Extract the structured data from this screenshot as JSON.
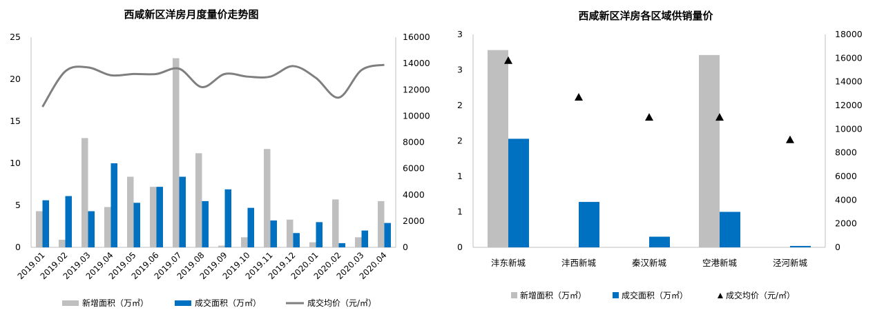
{
  "colors": {
    "new_area": "#bfbfbf",
    "deal_area": "#0070c0",
    "price": "#7f7f7f",
    "axis": "#bfbfbf",
    "marker": "#000000"
  },
  "chart_data": [
    {
      "type": "bar+line",
      "title": "西咸新区洋房月度量价走势图",
      "categories": [
        "2019.01",
        "2019.02",
        "2019.03",
        "2019.04",
        "2019.05",
        "2019.06",
        "2019.07",
        "2019.08",
        "2019.09",
        "2019.10",
        "2019.11",
        "2019.12",
        "2020.01",
        "2020.02",
        "2020.03",
        "2020.04"
      ],
      "series": [
        {
          "name": "新增面积（万㎡）",
          "type": "bar",
          "axis": "left",
          "values": [
            4.3,
            0.9,
            13.0,
            4.8,
            8.4,
            7.2,
            22.5,
            11.2,
            0.2,
            1.2,
            11.7,
            3.3,
            0.6,
            5.7,
            1.2,
            5.5
          ]
        },
        {
          "name": "成交面积（万㎡）",
          "type": "bar",
          "axis": "left",
          "values": [
            5.6,
            6.1,
            4.3,
            10.0,
            5.3,
            7.2,
            8.4,
            5.5,
            6.9,
            4.7,
            3.2,
            1.7,
            3.0,
            0.5,
            2.0,
            2.9
          ]
        },
        {
          "name": "成交均价（元/㎡）",
          "type": "line",
          "axis": "right",
          "values": [
            10700,
            13400,
            13700,
            13100,
            13200,
            13200,
            13600,
            12200,
            13200,
            13000,
            13000,
            13800,
            12900,
            11400,
            13500,
            13900
          ]
        }
      ],
      "ylim_left": [
        0,
        25
      ],
      "yticks_left": [
        "0",
        "5",
        "10",
        "15",
        "20",
        "25"
      ],
      "ylim_right": [
        0,
        16000
      ],
      "yticks_right": [
        "0",
        "2000",
        "4000",
        "6000",
        "8000",
        "10000",
        "12000",
        "14000",
        "16000"
      ],
      "legend": "bottom"
    },
    {
      "type": "bar+scatter",
      "title": "西咸新区洋房各区域供销量价",
      "categories": [
        "沣东新城",
        "沣西新城",
        "秦汉新城",
        "空港新城",
        "泾河新城"
      ],
      "series": [
        {
          "name": "新增面积（万㎡）",
          "type": "bar",
          "axis": "left",
          "values": [
            2.78,
            0,
            0,
            2.71,
            0
          ]
        },
        {
          "name": "成交面积（万㎡）",
          "type": "bar",
          "axis": "left",
          "values": [
            1.53,
            0.64,
            0.15,
            0.5,
            0.02
          ]
        },
        {
          "name": "成交均价（元/㎡）",
          "type": "scatter",
          "marker": "triangle",
          "axis": "right",
          "values": [
            15800,
            12700,
            11000,
            11000,
            9100
          ]
        }
      ],
      "ylim_left": [
        0,
        3
      ],
      "yticks_left": [
        "0",
        "1",
        "1",
        "2",
        "2",
        "3",
        "3"
      ],
      "ylim_right": [
        0,
        18000
      ],
      "yticks_right": [
        "0",
        "2000",
        "4000",
        "6000",
        "8000",
        "10000",
        "12000",
        "14000",
        "16000",
        "18000"
      ],
      "legend": "bottom"
    }
  ]
}
